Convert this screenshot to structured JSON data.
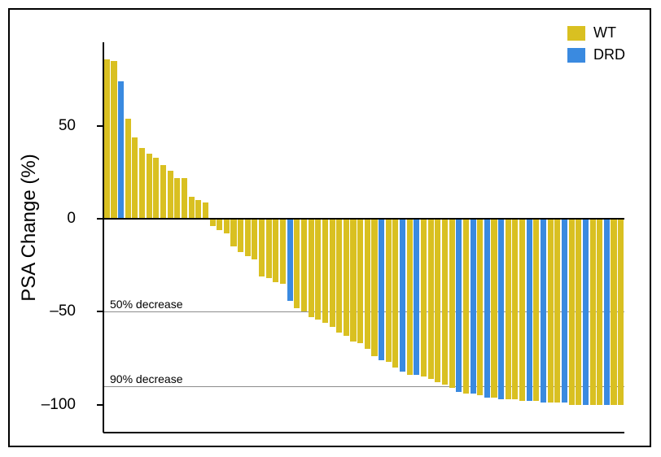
{
  "chart": {
    "type": "bar",
    "y_title": "PSA Change (%)",
    "ylim": [
      -115,
      95
    ],
    "y_ticks": [
      -100,
      -50,
      0,
      50
    ],
    "tick_fontsize": 19,
    "title_fontsize": 24,
    "background_color": "#ffffff",
    "axis_color": "#000000",
    "bar_gap_ratio": 0.18,
    "colors": {
      "WT": "#d9c021",
      "DRD": "#3a8ae0"
    },
    "legend": {
      "items": [
        {
          "key": "WT",
          "label": "WT"
        },
        {
          "key": "DRD",
          "label": "DRD"
        }
      ],
      "fontsize": 18
    },
    "reference_lines": [
      {
        "y": -50,
        "label": "50% decrease",
        "color": "#8c8c8c",
        "fontsize": 14
      },
      {
        "y": -90,
        "label": "90% decrease",
        "color": "#8c8c8c",
        "fontsize": 14
      }
    ],
    "bars": [
      {
        "v": 86,
        "g": "WT"
      },
      {
        "v": 85,
        "g": "WT"
      },
      {
        "v": 74,
        "g": "DRD"
      },
      {
        "v": 54,
        "g": "WT"
      },
      {
        "v": 44,
        "g": "WT"
      },
      {
        "v": 38,
        "g": "WT"
      },
      {
        "v": 35,
        "g": "WT"
      },
      {
        "v": 33,
        "g": "WT"
      },
      {
        "v": 29,
        "g": "WT"
      },
      {
        "v": 26,
        "g": "WT"
      },
      {
        "v": 22,
        "g": "WT"
      },
      {
        "v": 22,
        "g": "WT"
      },
      {
        "v": 12,
        "g": "WT"
      },
      {
        "v": 10,
        "g": "WT"
      },
      {
        "v": 9,
        "g": "WT"
      },
      {
        "v": -4,
        "g": "WT"
      },
      {
        "v": -6,
        "g": "WT"
      },
      {
        "v": -8,
        "g": "WT"
      },
      {
        "v": -15,
        "g": "WT"
      },
      {
        "v": -18,
        "g": "WT"
      },
      {
        "v": -20,
        "g": "WT"
      },
      {
        "v": -22,
        "g": "WT"
      },
      {
        "v": -31,
        "g": "WT"
      },
      {
        "v": -32,
        "g": "WT"
      },
      {
        "v": -34,
        "g": "WT"
      },
      {
        "v": -35,
        "g": "WT"
      },
      {
        "v": -44,
        "g": "DRD"
      },
      {
        "v": -48,
        "g": "WT"
      },
      {
        "v": -50,
        "g": "WT"
      },
      {
        "v": -53,
        "g": "WT"
      },
      {
        "v": -54,
        "g": "WT"
      },
      {
        "v": -56,
        "g": "WT"
      },
      {
        "v": -58,
        "g": "WT"
      },
      {
        "v": -61,
        "g": "WT"
      },
      {
        "v": -63,
        "g": "WT"
      },
      {
        "v": -66,
        "g": "WT"
      },
      {
        "v": -67,
        "g": "WT"
      },
      {
        "v": -70,
        "g": "WT"
      },
      {
        "v": -74,
        "g": "WT"
      },
      {
        "v": -76,
        "g": "DRD"
      },
      {
        "v": -77,
        "g": "WT"
      },
      {
        "v": -80,
        "g": "WT"
      },
      {
        "v": -82,
        "g": "DRD"
      },
      {
        "v": -84,
        "g": "WT"
      },
      {
        "v": -84,
        "g": "DRD"
      },
      {
        "v": -85,
        "g": "WT"
      },
      {
        "v": -86,
        "g": "WT"
      },
      {
        "v": -88,
        "g": "WT"
      },
      {
        "v": -89,
        "g": "WT"
      },
      {
        "v": -91,
        "g": "WT"
      },
      {
        "v": -93,
        "g": "DRD"
      },
      {
        "v": -94,
        "g": "WT"
      },
      {
        "v": -94,
        "g": "DRD"
      },
      {
        "v": -95,
        "g": "WT"
      },
      {
        "v": -96,
        "g": "DRD"
      },
      {
        "v": -96,
        "g": "WT"
      },
      {
        "v": -97,
        "g": "DRD"
      },
      {
        "v": -97,
        "g": "WT"
      },
      {
        "v": -97,
        "g": "WT"
      },
      {
        "v": -98,
        "g": "WT"
      },
      {
        "v": -98,
        "g": "DRD"
      },
      {
        "v": -98,
        "g": "WT"
      },
      {
        "v": -99,
        "g": "DRD"
      },
      {
        "v": -99,
        "g": "WT"
      },
      {
        "v": -99,
        "g": "WT"
      },
      {
        "v": -99,
        "g": "DRD"
      },
      {
        "v": -100,
        "g": "WT"
      },
      {
        "v": -100,
        "g": "WT"
      },
      {
        "v": -100,
        "g": "DRD"
      },
      {
        "v": -100,
        "g": "WT"
      },
      {
        "v": -100,
        "g": "WT"
      },
      {
        "v": -100,
        "g": "DRD"
      },
      {
        "v": -100,
        "g": "WT"
      },
      {
        "v": -100,
        "g": "WT"
      }
    ]
  }
}
